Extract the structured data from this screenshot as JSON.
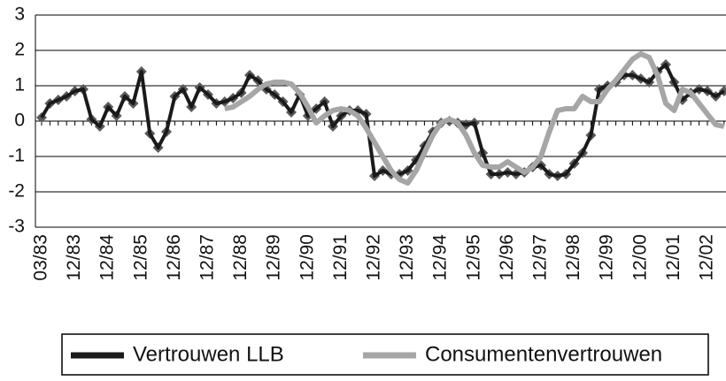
{
  "chart_data": {
    "type": "line",
    "categories": [
      "03/83",
      null,
      null,
      null,
      "12/83",
      null,
      null,
      null,
      "12/84",
      null,
      null,
      null,
      "12/85",
      null,
      null,
      null,
      "12/86",
      null,
      null,
      null,
      "12/87",
      null,
      null,
      null,
      "12/88",
      null,
      null,
      null,
      "12/89",
      null,
      null,
      null,
      "12/90",
      null,
      null,
      null,
      "12/91",
      null,
      null,
      null,
      "12/92",
      null,
      null,
      null,
      "12/93",
      null,
      null,
      null,
      "12/94",
      null,
      null,
      null,
      "12/95",
      null,
      null,
      null,
      "12/96",
      null,
      null,
      null,
      "12/97",
      null,
      null,
      null,
      "12/98",
      null,
      null,
      null,
      "12/99",
      null,
      null,
      null,
      "12/00",
      null,
      null,
      null,
      "12/01",
      null,
      null,
      null,
      "12/02",
      null,
      null
    ],
    "series": [
      {
        "name": "Vertrouwen LLB",
        "color": "#1a1a1a",
        "marker_color": "#5a5a5a",
        "values": [
          0.1,
          0.5,
          0.6,
          0.7,
          0.85,
          0.9,
          0.05,
          -0.15,
          0.4,
          0.15,
          0.7,
          0.5,
          1.4,
          -0.35,
          -0.75,
          -0.3,
          0.7,
          0.9,
          0.4,
          0.95,
          0.75,
          0.5,
          0.55,
          0.65,
          0.8,
          1.3,
          1.15,
          0.9,
          0.75,
          0.55,
          0.25,
          0.75,
          0.15,
          0.35,
          0.55,
          -0.15,
          0.15,
          0.3,
          0.3,
          0.2,
          -1.55,
          -1.4,
          -1.5,
          -1.5,
          -1.4,
          -1.1,
          -0.7,
          -0.3,
          -0.05,
          0,
          -0.05,
          -0.1,
          -0.05,
          -0.9,
          -1.5,
          -1.5,
          -1.45,
          -1.5,
          -1.45,
          -1.3,
          -1.25,
          -1.5,
          -1.55,
          -1.5,
          -1.2,
          -0.9,
          -0.4,
          0.9,
          1.0,
          1.1,
          1.3,
          1.3,
          1.2,
          1.1,
          1.4,
          1.6,
          1.1,
          0.6,
          0.8,
          0.9,
          0.85,
          0.7,
          0.85
        ]
      },
      {
        "name": "Consumentenvertrouwen",
        "color": "#a6a6a6",
        "values": [
          null,
          null,
          null,
          null,
          null,
          null,
          null,
          null,
          null,
          null,
          null,
          null,
          null,
          null,
          null,
          null,
          null,
          null,
          null,
          null,
          null,
          null,
          0.35,
          0.4,
          0.55,
          0.7,
          0.9,
          1.05,
          1.1,
          1.1,
          1.05,
          0.8,
          0.4,
          -0.05,
          0.15,
          0.3,
          0.35,
          0.3,
          0.15,
          -0.2,
          -0.6,
          -1.0,
          -1.4,
          -1.65,
          -1.75,
          -1.4,
          -0.9,
          -0.4,
          -0.05,
          0.05,
          -0.05,
          -0.4,
          -0.9,
          -1.25,
          -1.3,
          -1.3,
          -1.15,
          -1.3,
          -1.45,
          -1.3,
          -1.0,
          -0.3,
          0.3,
          0.35,
          0.35,
          0.7,
          0.55,
          0.55,
          0.9,
          1.15,
          1.45,
          1.75,
          1.9,
          1.8,
          1.3,
          0.5,
          0.3,
          0.9,
          0.8,
          0.5,
          0.2,
          -0.1,
          -0.15
        ]
      }
    ],
    "ylim": [
      -3,
      3
    ],
    "yticks": [
      -3,
      -2,
      -1,
      0,
      1,
      2,
      3
    ],
    "grid": true,
    "legend": "bottom"
  }
}
